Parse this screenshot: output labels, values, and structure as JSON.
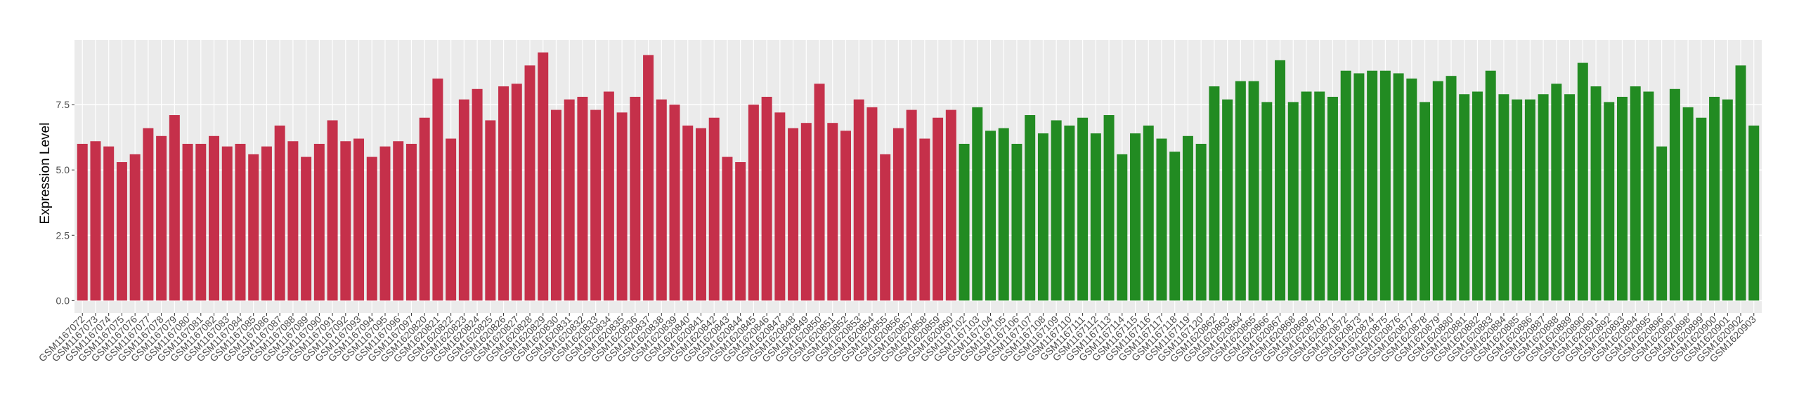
{
  "chart_data": {
    "type": "bar",
    "y_label": "Expression Level",
    "ylim": [
      -0.475,
      9.975
    ],
    "yticks": [
      {
        "value": 0,
        "label": "0.0"
      },
      2.5,
      {
        "value": 5,
        "label": "5.0"
      },
      7.5
    ],
    "grid": true,
    "series": [
      {
        "color": "#c5304a",
        "categories": [
          "GSM1167072",
          "GSM1167073",
          "GSM1167074",
          "GSM1167075",
          "GSM1167076",
          "GSM1167077",
          "GSM1167078",
          "GSM1167079",
          "GSM1167080",
          "GSM1167081",
          "GSM1167082",
          "GSM1167083",
          "GSM1167084",
          "GSM1167085",
          "GSM1167086",
          "GSM1167087",
          "GSM1167088",
          "GSM1167089",
          "GSM1167090",
          "GSM1167091",
          "GSM1167092",
          "GSM1167093",
          "GSM1167094",
          "GSM1167095",
          "GSM1167096",
          "GSM1167097",
          "GSM1620820",
          "GSM1620821",
          "GSM1620822",
          "GSM1620823",
          "GSM1620824",
          "GSM1620825",
          "GSM1620826",
          "GSM1620827",
          "GSM1620828",
          "GSM1620829",
          "GSM1620830",
          "GSM1620831",
          "GSM1620832",
          "GSM1620833",
          "GSM1620834",
          "GSM1620835",
          "GSM1620836",
          "GSM1620837",
          "GSM1620838",
          "GSM1620839",
          "GSM1620840",
          "GSM1620841",
          "GSM1620842",
          "GSM1620843",
          "GSM1620844",
          "GSM1620845",
          "GSM1620846",
          "GSM1620847",
          "GSM1620848",
          "GSM1620849",
          "GSM1620850",
          "GSM1620851",
          "GSM1620852",
          "GSM1620853",
          "GSM1620854",
          "GSM1620855",
          "GSM1620856",
          "GSM1620857",
          "GSM1620858",
          "GSM1620859",
          "GSM1620860"
        ],
        "values": [
          6.0,
          6.1,
          5.9,
          5.3,
          5.6,
          6.6,
          6.3,
          7.1,
          6.0,
          6.0,
          6.3,
          5.9,
          6.0,
          5.6,
          5.9,
          6.7,
          6.1,
          5.5,
          6.0,
          6.9,
          6.1,
          6.2,
          5.5,
          5.9,
          6.1,
          6.0,
          7.0,
          8.5,
          6.2,
          7.7,
          8.1,
          6.9,
          8.2,
          8.3,
          9.0,
          9.5,
          7.3,
          7.7,
          7.8,
          7.3,
          8.0,
          7.2,
          7.8,
          9.4,
          7.7,
          7.5,
          6.7,
          6.6,
          7.0,
          5.5,
          5.3,
          7.5,
          7.8,
          7.2,
          6.6,
          6.8,
          8.3,
          6.8,
          6.5,
          7.7,
          7.4,
          5.6,
          6.6,
          7.3,
          6.2,
          7.0,
          7.3
        ]
      },
      {
        "color": "#228b22",
        "categories": [
          "GSM1167102",
          "GSM1167103",
          "GSM1167104",
          "GSM1167105",
          "GSM1167106",
          "GSM1167107",
          "GSM1167108",
          "GSM1167109",
          "GSM1167110",
          "GSM1167111",
          "GSM1167112",
          "GSM1167113",
          "GSM1167114",
          "GSM1167115",
          "GSM1167116",
          "GSM1167117",
          "GSM1167118",
          "GSM1167119",
          "GSM1167120",
          "GSM1620862",
          "GSM1620863",
          "GSM1620864",
          "GSM1620865",
          "GSM1620866",
          "GSM1620867",
          "GSM1620868",
          "GSM1620869",
          "GSM1620870",
          "GSM1620871",
          "GSM1620872",
          "GSM1620873",
          "GSM1620874",
          "GSM1620875",
          "GSM1620876",
          "GSM1620877",
          "GSM1620878",
          "GSM1620879",
          "GSM1620880",
          "GSM1620881",
          "GSM1620882",
          "GSM1620883",
          "GSM1620884",
          "GSM1620885",
          "GSM1620886",
          "GSM1620887",
          "GSM1620888",
          "GSM1620889",
          "GSM1620890",
          "GSM1620891",
          "GSM1620892",
          "GSM1620893",
          "GSM1620894",
          "GSM1620895",
          "GSM1620896",
          "GSM1620897",
          "GSM1620898",
          "GSM1620899",
          "GSM1620900",
          "GSM1620901",
          "GSM1620902",
          "GSM1620903"
        ],
        "values": [
          6.0,
          7.4,
          6.5,
          6.6,
          6.0,
          7.1,
          6.4,
          6.9,
          6.7,
          7.0,
          6.4,
          7.1,
          5.6,
          6.4,
          6.7,
          6.2,
          5.7,
          6.3,
          6.0,
          8.2,
          7.7,
          8.4,
          8.4,
          7.6,
          9.2,
          7.6,
          8.0,
          8.0,
          7.8,
          8.8,
          8.7,
          8.8,
          8.8,
          8.7,
          8.5,
          7.6,
          8.4,
          8.6,
          7.9,
          8.0,
          8.8,
          7.9,
          7.7,
          7.7,
          7.9,
          8.3,
          7.9,
          9.1,
          8.2,
          7.6,
          7.8,
          8.2,
          8.0,
          5.9,
          8.1,
          7.4,
          7.0,
          7.8,
          7.7,
          9.0,
          6.7
        ]
      }
    ]
  }
}
